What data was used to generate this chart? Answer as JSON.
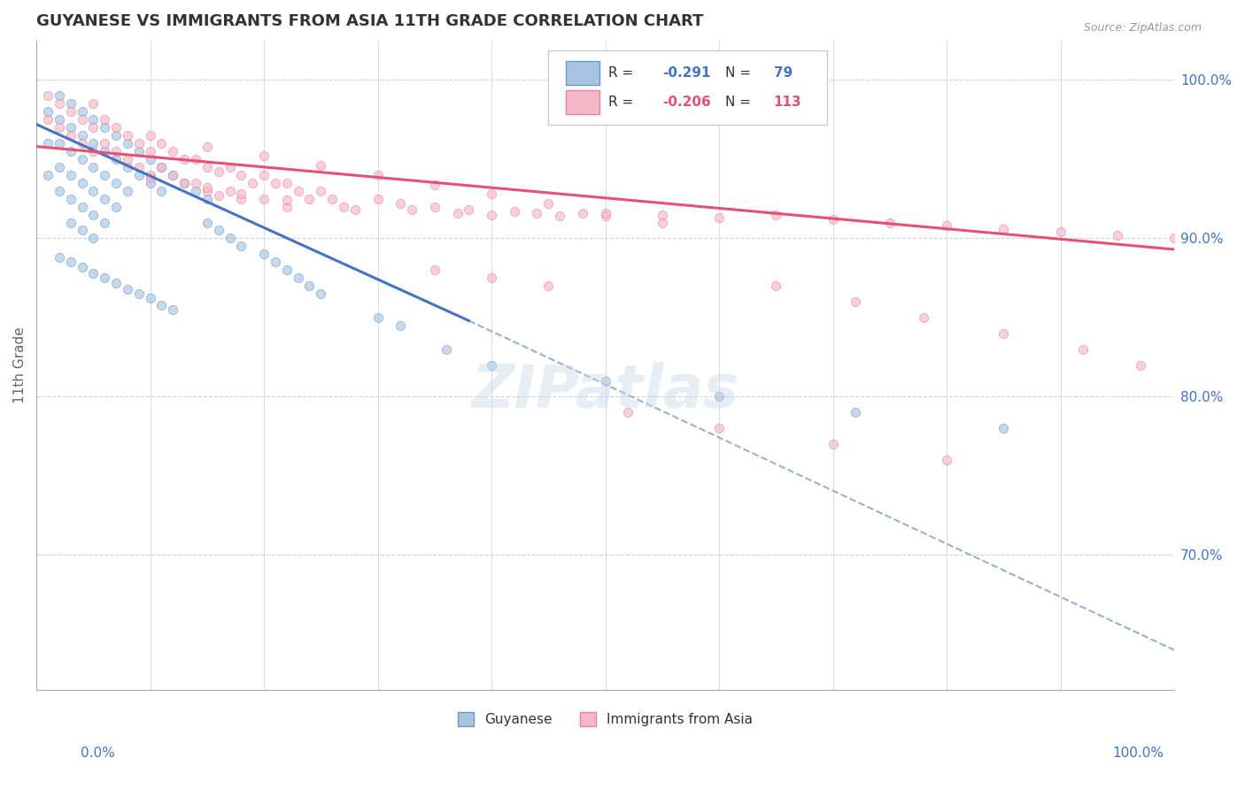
{
  "title": "GUYANESE VS IMMIGRANTS FROM ASIA 11TH GRADE CORRELATION CHART",
  "source_text": "Source: ZipAtlas.com",
  "ylabel": "11th Grade",
  "ylabel_right_ticks": [
    "100.0%",
    "90.0%",
    "80.0%",
    "70.0%"
  ],
  "ylabel_right_vals": [
    1.0,
    0.9,
    0.8,
    0.7
  ],
  "watermark": "ZIPatlas",
  "xmin": 0.0,
  "xmax": 1.0,
  "ymin": 0.615,
  "ymax": 1.025,
  "blue_scatter_x": [
    0.01,
    0.01,
    0.01,
    0.02,
    0.02,
    0.02,
    0.02,
    0.02,
    0.03,
    0.03,
    0.03,
    0.03,
    0.03,
    0.03,
    0.04,
    0.04,
    0.04,
    0.04,
    0.04,
    0.04,
    0.05,
    0.05,
    0.05,
    0.05,
    0.05,
    0.05,
    0.06,
    0.06,
    0.06,
    0.06,
    0.06,
    0.07,
    0.07,
    0.07,
    0.07,
    0.08,
    0.08,
    0.08,
    0.09,
    0.09,
    0.1,
    0.1,
    0.11,
    0.11,
    0.12,
    0.13,
    0.14,
    0.15,
    0.15,
    0.16,
    0.17,
    0.18,
    0.2,
    0.21,
    0.22,
    0.23,
    0.24,
    0.25,
    0.3,
    0.32,
    0.36,
    0.4,
    0.5,
    0.6,
    0.72,
    0.85,
    0.02,
    0.03,
    0.04,
    0.05,
    0.06,
    0.07,
    0.08,
    0.09,
    0.1,
    0.11,
    0.12
  ],
  "blue_scatter_y": [
    0.98,
    0.96,
    0.94,
    0.99,
    0.975,
    0.96,
    0.945,
    0.93,
    0.985,
    0.97,
    0.955,
    0.94,
    0.925,
    0.91,
    0.98,
    0.965,
    0.95,
    0.935,
    0.92,
    0.905,
    0.975,
    0.96,
    0.945,
    0.93,
    0.915,
    0.9,
    0.97,
    0.955,
    0.94,
    0.925,
    0.91,
    0.965,
    0.95,
    0.935,
    0.92,
    0.96,
    0.945,
    0.93,
    0.955,
    0.94,
    0.95,
    0.935,
    0.945,
    0.93,
    0.94,
    0.935,
    0.93,
    0.925,
    0.91,
    0.905,
    0.9,
    0.895,
    0.89,
    0.885,
    0.88,
    0.875,
    0.87,
    0.865,
    0.85,
    0.845,
    0.83,
    0.82,
    0.81,
    0.8,
    0.79,
    0.78,
    0.888,
    0.885,
    0.882,
    0.878,
    0.875,
    0.872,
    0.868,
    0.865,
    0.862,
    0.858,
    0.855
  ],
  "pink_scatter_x": [
    0.01,
    0.01,
    0.02,
    0.02,
    0.03,
    0.03,
    0.04,
    0.04,
    0.05,
    0.05,
    0.05,
    0.06,
    0.06,
    0.07,
    0.07,
    0.08,
    0.08,
    0.09,
    0.09,
    0.1,
    0.1,
    0.11,
    0.11,
    0.12,
    0.12,
    0.13,
    0.13,
    0.14,
    0.14,
    0.15,
    0.15,
    0.16,
    0.16,
    0.17,
    0.17,
    0.18,
    0.18,
    0.19,
    0.2,
    0.2,
    0.21,
    0.22,
    0.22,
    0.23,
    0.24,
    0.25,
    0.26,
    0.27,
    0.28,
    0.3,
    0.32,
    0.33,
    0.35,
    0.37,
    0.38,
    0.4,
    0.42,
    0.44,
    0.46,
    0.48,
    0.5,
    0.55,
    0.6,
    0.65,
    0.7,
    0.75,
    0.8,
    0.85,
    0.9,
    0.95,
    1.0,
    0.1,
    0.15,
    0.2,
    0.25,
    0.3,
    0.35,
    0.4,
    0.45,
    0.5,
    0.55,
    0.1,
    0.15,
    0.18,
    0.22,
    0.52,
    0.6,
    0.7,
    0.8,
    0.35,
    0.4,
    0.45,
    0.65,
    0.72,
    0.78,
    0.85,
    0.92,
    0.97
  ],
  "pink_scatter_y": [
    0.99,
    0.975,
    0.985,
    0.97,
    0.98,
    0.965,
    0.975,
    0.96,
    0.985,
    0.97,
    0.955,
    0.975,
    0.96,
    0.97,
    0.955,
    0.965,
    0.95,
    0.96,
    0.945,
    0.955,
    0.94,
    0.96,
    0.945,
    0.955,
    0.94,
    0.95,
    0.935,
    0.95,
    0.935,
    0.945,
    0.93,
    0.942,
    0.927,
    0.945,
    0.93,
    0.94,
    0.925,
    0.935,
    0.94,
    0.925,
    0.935,
    0.935,
    0.92,
    0.93,
    0.925,
    0.93,
    0.925,
    0.92,
    0.918,
    0.925,
    0.922,
    0.918,
    0.92,
    0.916,
    0.918,
    0.915,
    0.917,
    0.916,
    0.914,
    0.916,
    0.914,
    0.915,
    0.913,
    0.915,
    0.912,
    0.91,
    0.908,
    0.906,
    0.904,
    0.902,
    0.9,
    0.965,
    0.958,
    0.952,
    0.946,
    0.94,
    0.934,
    0.928,
    0.922,
    0.916,
    0.91,
    0.938,
    0.932,
    0.928,
    0.924,
    0.79,
    0.78,
    0.77,
    0.76,
    0.88,
    0.875,
    0.87,
    0.87,
    0.86,
    0.85,
    0.84,
    0.83,
    0.82
  ],
  "blue_line_x": [
    0.0,
    0.38
  ],
  "blue_line_y": [
    0.972,
    0.848
  ],
  "pink_line_x": [
    0.0,
    1.0
  ],
  "pink_line_y": [
    0.958,
    0.893
  ],
  "dashed_line_x": [
    0.38,
    1.0
  ],
  "dashed_line_y": [
    0.848,
    0.64
  ],
  "blue_dot_color": "#a8c4e0",
  "blue_dot_edge": "#6699cc",
  "pink_dot_color": "#f5b8c8",
  "pink_dot_edge": "#e8809a",
  "blue_line_color": "#4472c4",
  "pink_line_color": "#e85070",
  "dashed_line_color": "#9ab0cc",
  "title_color": "#333333",
  "axis_label_color": "#4472c4",
  "background_color": "#ffffff",
  "grid_color": "#c8d4e4",
  "dot_size": 55,
  "dot_alpha": 0.65
}
